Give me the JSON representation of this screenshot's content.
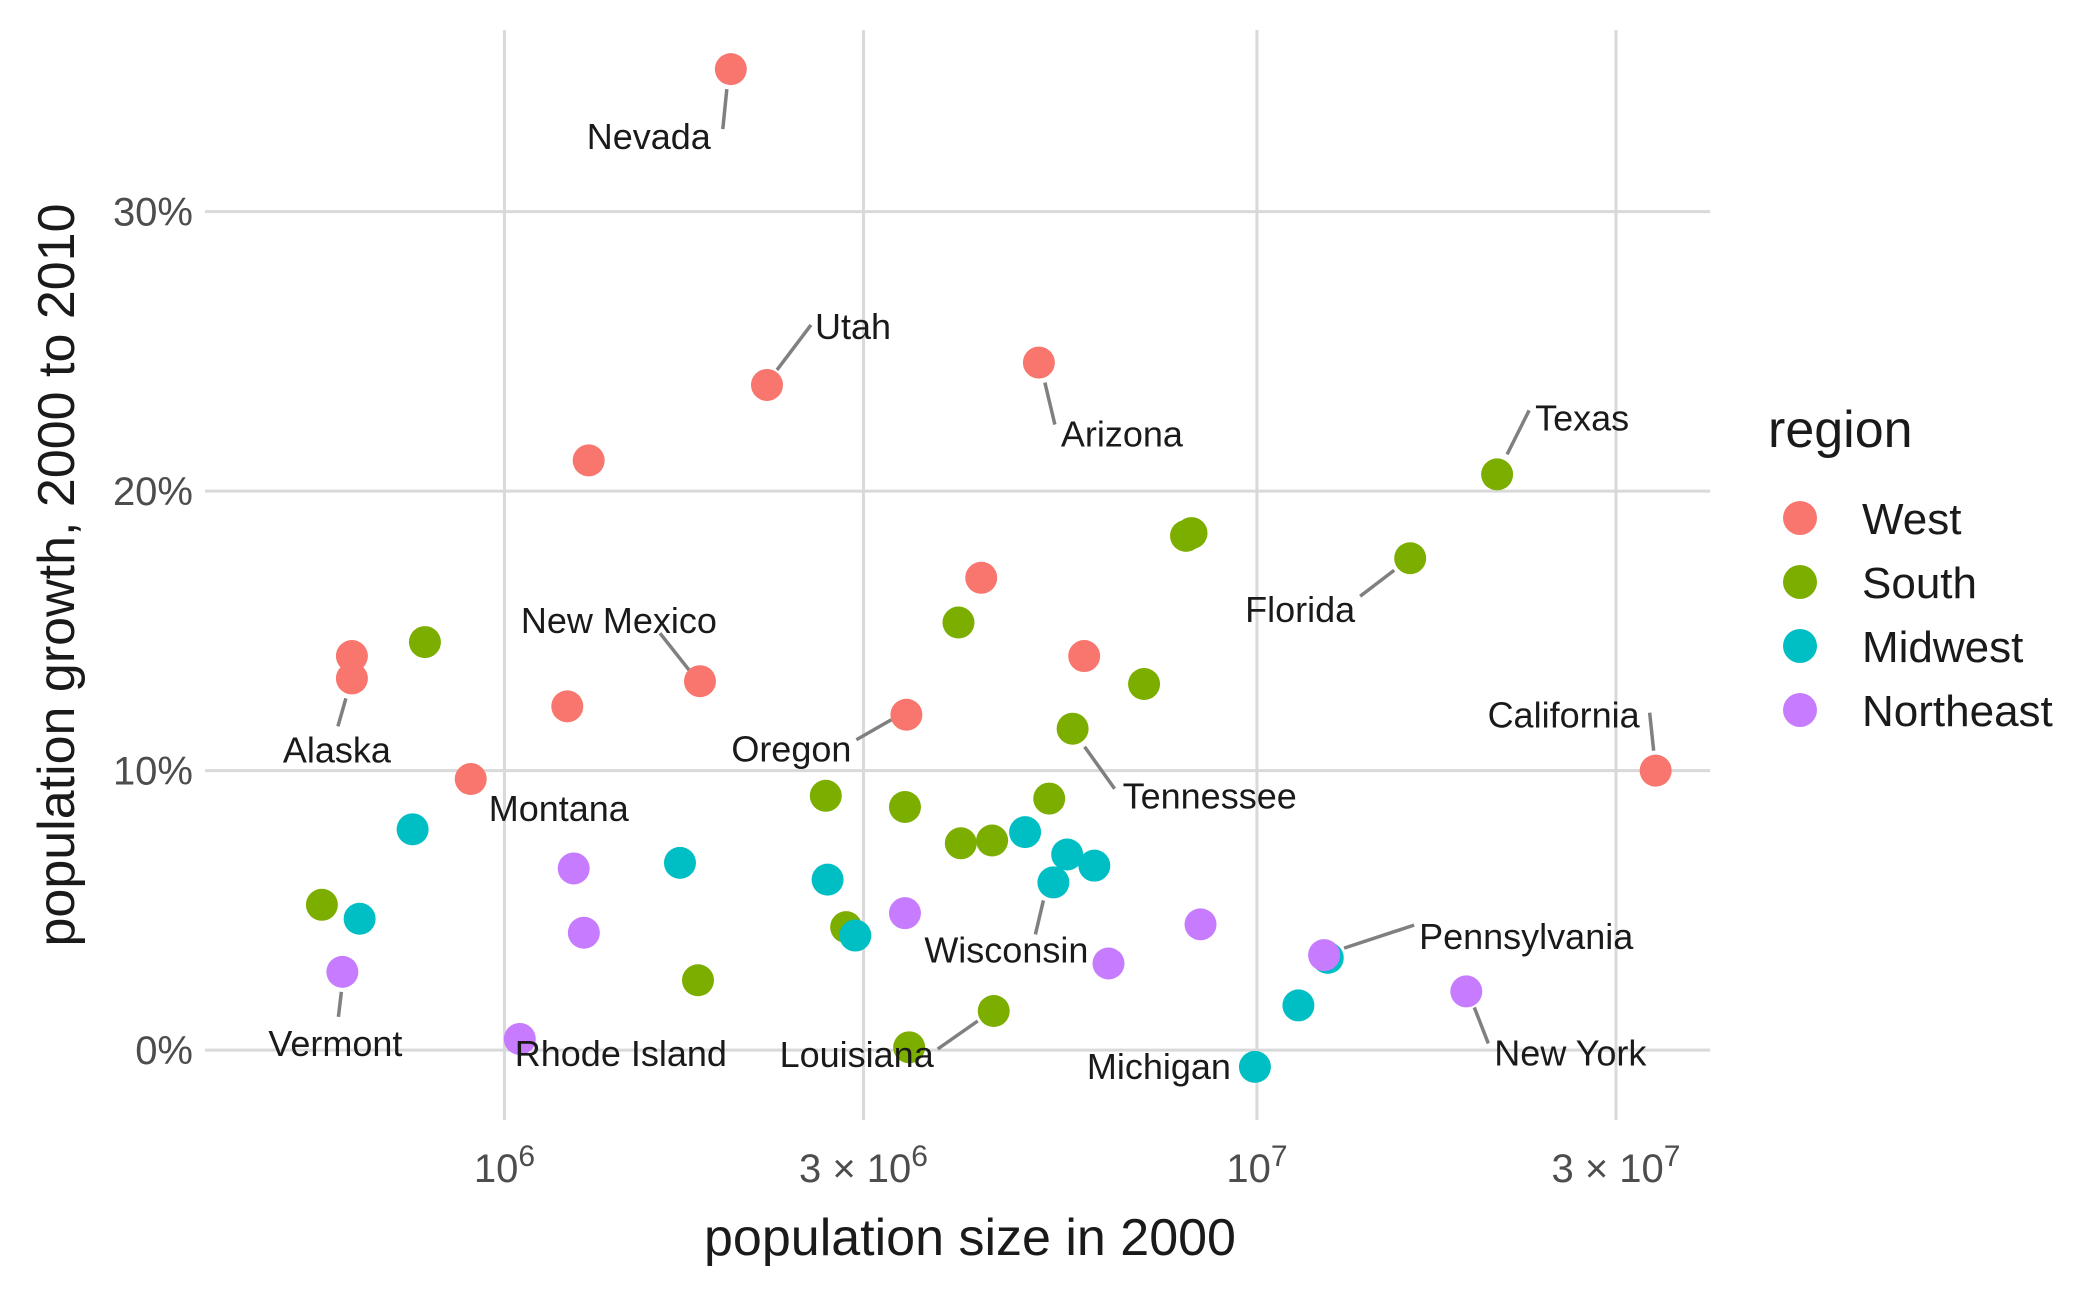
{
  "chart_data": {
    "type": "scatter",
    "xlabel": "population size in 2000",
    "ylabel": "population growth, 2000 to 2010",
    "x_scale": "log10",
    "xlim": [
      400000,
      40000000
    ],
    "ylim": [
      -2.5,
      36.5
    ],
    "grid": true,
    "x_ticks": [
      {
        "value": 1000000,
        "base": "10",
        "exp": "6"
      },
      {
        "value": 3000000,
        "base": "3 × 10",
        "exp": "6"
      },
      {
        "value": 10000000,
        "base": "10",
        "exp": "7"
      },
      {
        "value": 30000000,
        "base": "3 × 10",
        "exp": "7"
      }
    ],
    "y_ticks": [
      {
        "value": 0,
        "label": "0%"
      },
      {
        "value": 10,
        "label": "10%"
      },
      {
        "value": 20,
        "label": "20%"
      },
      {
        "value": 30,
        "label": "30%"
      }
    ],
    "legend": {
      "title": "region",
      "position": "right",
      "entries": [
        {
          "name": "West",
          "color": "#F8766D"
        },
        {
          "name": "South",
          "color": "#7CAE00"
        },
        {
          "name": "Midwest",
          "color": "#00BFC4"
        },
        {
          "name": "Northeast",
          "color": "#C77CFF"
        }
      ]
    },
    "points": [
      {
        "x": 1999000,
        "y": 35.1,
        "region": "West",
        "label": "Nevada"
      },
      {
        "x": 2233000,
        "y": 23.8,
        "region": "West",
        "label": "Utah"
      },
      {
        "x": 5131000,
        "y": 24.6,
        "region": "West",
        "label": "Arizona"
      },
      {
        "x": 1294000,
        "y": 21.1,
        "region": "West"
      },
      {
        "x": 4301000,
        "y": 16.9,
        "region": "West"
      },
      {
        "x": 627000,
        "y": 14.1,
        "region": "West"
      },
      {
        "x": 1819000,
        "y": 13.2,
        "region": "West",
        "label": "New Mexico"
      },
      {
        "x": 5894000,
        "y": 14.1,
        "region": "West"
      },
      {
        "x": 1212000,
        "y": 12.3,
        "region": "West"
      },
      {
        "x": 3421000,
        "y": 12.0,
        "region": "West",
        "label": "Oregon"
      },
      {
        "x": 627000,
        "y": 13.3,
        "region": "West",
        "label": "Alaska"
      },
      {
        "x": 902000,
        "y": 9.7,
        "region": "West",
        "label": "Montana"
      },
      {
        "x": 33872000,
        "y": 10.0,
        "region": "West",
        "label": "California"
      },
      {
        "x": 20852000,
        "y": 20.6,
        "region": "South",
        "label": "Texas"
      },
      {
        "x": 15982000,
        "y": 17.6,
        "region": "South",
        "label": "Florida"
      },
      {
        "x": 8186000,
        "y": 18.5,
        "region": "South"
      },
      {
        "x": 8049000,
        "y": 18.4,
        "region": "South"
      },
      {
        "x": 4012000,
        "y": 15.3,
        "region": "South"
      },
      {
        "x": 784000,
        "y": 14.6,
        "region": "South"
      },
      {
        "x": 7079000,
        "y": 13.1,
        "region": "South"
      },
      {
        "x": 5689000,
        "y": 11.5,
        "region": "South",
        "label": "Tennessee"
      },
      {
        "x": 3406000,
        "y": 8.7,
        "region": "South"
      },
      {
        "x": 2673000,
        "y": 9.1,
        "region": "South"
      },
      {
        "x": 5296000,
        "y": 9.0,
        "region": "South"
      },
      {
        "x": 4041000,
        "y": 7.4,
        "region": "South"
      },
      {
        "x": 4447000,
        "y": 7.5,
        "region": "South"
      },
      {
        "x": 2845000,
        "y": 4.4,
        "region": "South"
      },
      {
        "x": 1808000,
        "y": 2.5,
        "region": "South"
      },
      {
        "x": 4469000,
        "y": 1.4,
        "region": "South",
        "label": "Louisiana"
      },
      {
        "x": 572000,
        "y": 5.2,
        "region": "South"
      },
      {
        "x": 3450000,
        "y": 0.1,
        "region": "South"
      },
      {
        "x": 4919000,
        "y": 7.8,
        "region": "Midwest"
      },
      {
        "x": 5595000,
        "y": 7.0,
        "region": "Midwest"
      },
      {
        "x": 6080000,
        "y": 6.6,
        "region": "Midwest"
      },
      {
        "x": 5364000,
        "y": 6.0,
        "region": "Midwest",
        "label": "Wisconsin"
      },
      {
        "x": 2926000,
        "y": 4.1,
        "region": "Midwest"
      },
      {
        "x": 2688000,
        "y": 6.1,
        "region": "Midwest"
      },
      {
        "x": 1711000,
        "y": 6.7,
        "region": "Midwest"
      },
      {
        "x": 755000,
        "y": 7.9,
        "region": "Midwest"
      },
      {
        "x": 642000,
        "y": 4.7,
        "region": "Midwest"
      },
      {
        "x": 9938000,
        "y": -0.6,
        "region": "Midwest",
        "label": "Michigan"
      },
      {
        "x": 11353000,
        "y": 1.6,
        "region": "Midwest"
      },
      {
        "x": 12419000,
        "y": 3.3,
        "region": "Midwest"
      },
      {
        "x": 12281000,
        "y": 3.4,
        "region": "Northeast",
        "label": "Pennsylvania"
      },
      {
        "x": 18976000,
        "y": 2.1,
        "region": "Northeast",
        "label": "New York"
      },
      {
        "x": 8414000,
        "y": 4.5,
        "region": "Northeast"
      },
      {
        "x": 6349000,
        "y": 3.1,
        "region": "Northeast"
      },
      {
        "x": 3406000,
        "y": 4.9,
        "region": "Northeast"
      },
      {
        "x": 1236000,
        "y": 6.5,
        "region": "Northeast"
      },
      {
        "x": 1275000,
        "y": 4.2,
        "region": "Northeast"
      },
      {
        "x": 609000,
        "y": 2.8,
        "region": "Northeast",
        "label": "Vermont"
      },
      {
        "x": 1048000,
        "y": 0.4,
        "region": "Northeast",
        "label": "Rhode Island"
      }
    ]
  }
}
